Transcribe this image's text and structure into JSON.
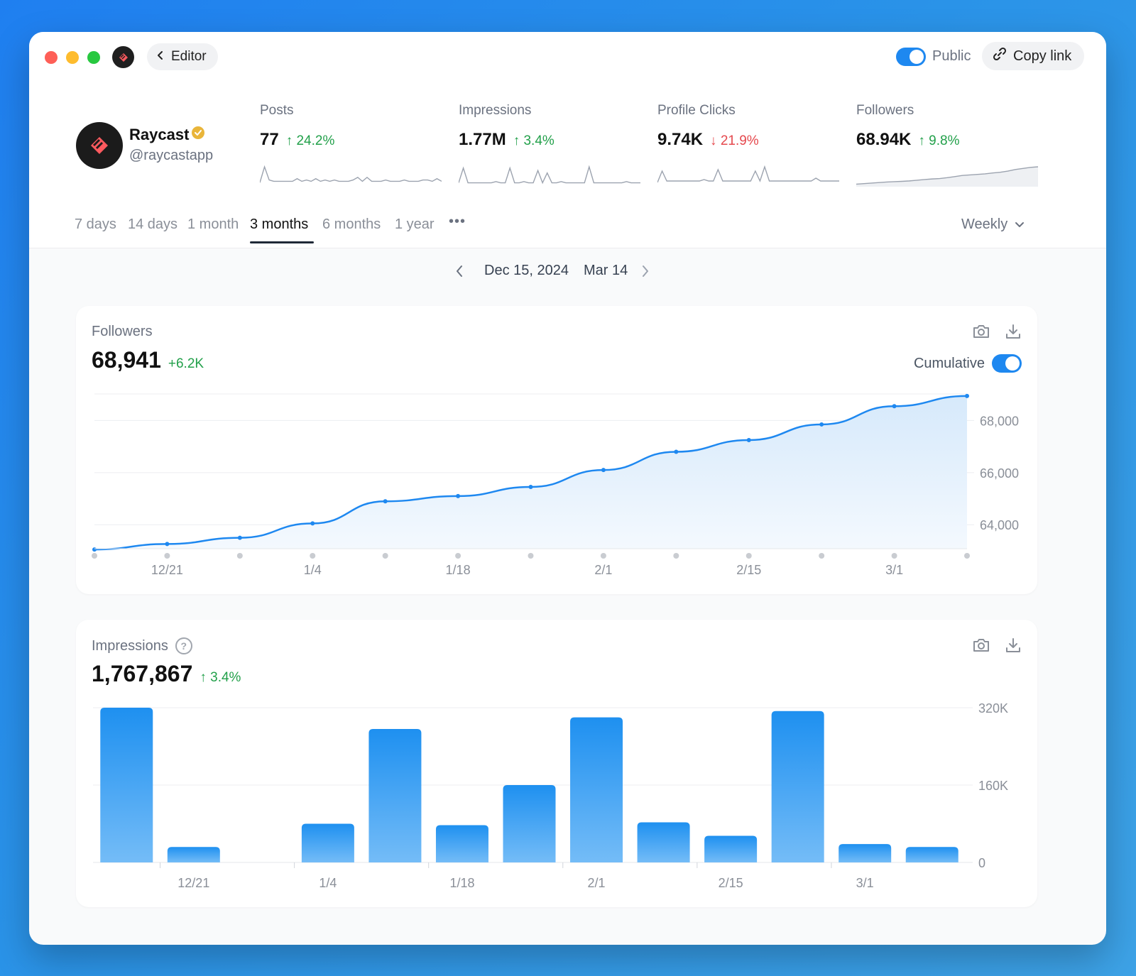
{
  "titlebar": {
    "back_label": "Editor",
    "public_label": "Public",
    "public_on": true,
    "copy_link_label": "Copy link"
  },
  "profile": {
    "name": "Raycast",
    "handle": "@raycastapp",
    "verified": true
  },
  "stats": [
    {
      "label": "Posts",
      "value": "77",
      "change": "24.2%",
      "direction": "up",
      "spark": [
        2,
        14,
        4,
        3,
        3,
        3,
        3,
        3,
        5,
        3,
        4,
        3,
        5,
        3,
        4,
        3,
        4,
        3,
        3,
        3,
        4,
        6,
        3,
        6,
        3,
        3,
        3,
        4,
        3,
        3,
        3,
        4,
        3,
        3,
        3,
        4,
        4,
        3,
        5,
        3
      ]
    },
    {
      "label": "Impressions",
      "value": "1.77M",
      "change": "3.4%",
      "direction": "up",
      "spark": [
        2,
        14,
        2,
        2,
        2,
        2,
        2,
        2,
        3,
        2,
        2,
        14,
        2,
        2,
        3,
        2,
        2,
        12,
        2,
        10,
        2,
        2,
        3,
        2,
        2,
        2,
        2,
        2,
        15,
        2,
        2,
        2,
        2,
        2,
        2,
        2,
        3,
        2,
        2,
        2
      ]
    },
    {
      "label": "Profile Clicks",
      "value": "9.74K",
      "change": "21.9%",
      "direction": "down",
      "spark": [
        2,
        10,
        3,
        3,
        3,
        3,
        3,
        3,
        3,
        3,
        4,
        3,
        3,
        11,
        3,
        3,
        3,
        3,
        3,
        3,
        3,
        10,
        3,
        13,
        3,
        3,
        3,
        3,
        3,
        3,
        3,
        3,
        3,
        3,
        5,
        3,
        3,
        3,
        3,
        3
      ]
    },
    {
      "label": "Followers",
      "value": "68.94K",
      "change": "9.8%",
      "direction": "up",
      "spark": [
        1,
        1.5,
        2,
        2.5,
        3,
        3.3,
        3.6,
        4,
        4.6,
        5.3,
        5.8,
        6.2,
        7,
        8,
        9,
        9.5,
        10,
        10.5,
        11.3,
        12,
        13,
        14.5,
        15.5,
        16.5,
        17
      ]
    }
  ],
  "range_tabs": [
    "7 days",
    "14 days",
    "1 month",
    "3 months",
    "6 months",
    "1 year"
  ],
  "range_active": "3 months",
  "more_label": "•••",
  "interval_label": "Weekly",
  "date_range": {
    "start": "Dec 15, 2024",
    "end": "Mar 14"
  },
  "followers_card": {
    "title": "Followers",
    "value": "68,941",
    "delta": "+6.2K",
    "cumulative_label": "Cumulative",
    "cumulative_on": true
  },
  "impressions_card": {
    "title": "Impressions",
    "help_glyph": "?",
    "value": "1,767,867",
    "delta": "3.4%"
  },
  "colors": {
    "accent": "#1e88f0",
    "positive": "#22a04a",
    "negative": "#e5484d"
  },
  "chart_data": [
    {
      "type": "area",
      "x": [
        "12/14",
        "12/21",
        "12/28",
        "1/4",
        "1/11",
        "1/18",
        "1/25",
        "2/1",
        "2/8",
        "2/15",
        "2/22",
        "3/1",
        "3/8"
      ],
      "x_tick_labels": [
        "12/21",
        "1/4",
        "1/18",
        "2/1",
        "2/15",
        "3/1"
      ],
      "x_tick_indices": [
        1,
        3,
        5,
        7,
        9,
        11
      ],
      "series": [
        {
          "values": [
            63050,
            63260,
            63500,
            64050,
            64900,
            65100,
            65450,
            66100,
            66800,
            67250,
            67850,
            68550,
            68941
          ]
        }
      ],
      "y_ticks": [
        "64,000",
        "66,000",
        "68,000"
      ],
      "ylim": [
        63080,
        69020
      ],
      "grid": true
    },
    {
      "type": "bar",
      "x": [
        "12/14",
        "12/21",
        "12/28",
        "1/4",
        "1/11",
        "1/18",
        "1/25",
        "2/1",
        "2/8",
        "2/15",
        "2/22",
        "3/1",
        "3/8"
      ],
      "x_tick_labels": [
        "12/21",
        "1/4",
        "1/18",
        "2/1",
        "2/15",
        "3/1"
      ],
      "x_tick_indices": [
        1,
        3,
        5,
        7,
        9,
        11
      ],
      "series": [
        {
          "values": [
            320000,
            32000,
            0,
            80000,
            276000,
            77000,
            160000,
            300000,
            83000,
            55000,
            313000,
            38000,
            32000
          ]
        }
      ],
      "y_ticks": [
        "0",
        "160K",
        "320K"
      ],
      "ylim": [
        0,
        320000
      ],
      "grid": true
    }
  ]
}
